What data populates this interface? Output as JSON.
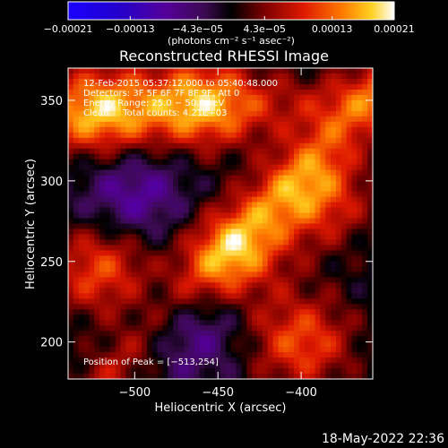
{
  "chart_data": {
    "type": "heatmap",
    "title": "Reconstructed RHESSI Image",
    "xlabel": "Heliocentric X (arcsec)",
    "ylabel": "Heliocentric Y (arcsec)",
    "xlim": [
      -540,
      -357
    ],
    "ylim": [
      177,
      370
    ],
    "x_ticks": [
      -500,
      -450,
      -400
    ],
    "x_tick_labels": [
      "−500",
      "−450",
      "−400"
    ],
    "y_ticks": [
      200,
      250,
      300,
      350
    ],
    "y_tick_labels": [
      "200",
      "250",
      "300",
      "350"
    ],
    "colorbar": {
      "min": -0.00021,
      "max": 0.00021,
      "ticks": [
        -0.00021,
        -0.00013,
        -4.3e-05,
        4.3e-05,
        0.00013,
        0.00021
      ],
      "tick_labels": [
        "−0.00021",
        "−0.00013",
        "−4.3e−05",
        "4.3e−05",
        "0.00013",
        "0.00021"
      ],
      "units_label": "(photons cm⁻² s⁻¹ asec⁻²)",
      "colormap": "rainbow-to-hot"
    },
    "annotations": {
      "time": "12-Feb-2015 05:37:12.000 to 05:40:48.000",
      "detectors": "Detectors: 3F 5F 6F 7F 8F 9F, Att 0",
      "energy": "Energy Range: 25.0 − 50.0 keV",
      "method": "Clean     Total counts: 4.21E+03",
      "peak": "Position of Peak = [−513,254]"
    },
    "peak_position": [
      -513,
      254
    ],
    "features": [
      {
        "region": "upper-left",
        "x": -520,
        "y": 345,
        "level": "high"
      },
      {
        "region": "upper-center",
        "x": -460,
        "y": 350,
        "level": "high"
      },
      {
        "region": "right ridge",
        "x": -390,
        "y": 290,
        "level": "high"
      },
      {
        "region": "center band",
        "x": -440,
        "y": 255,
        "level": "high"
      },
      {
        "region": "lower-left",
        "x": -520,
        "y": 245,
        "level": "high"
      },
      {
        "region": "lower-right",
        "x": -400,
        "y": 200,
        "level": "high"
      },
      {
        "region": "mid-left",
        "x": -500,
        "y": 290,
        "level": "low"
      },
      {
        "region": "center-lower",
        "x": -470,
        "y": 210,
        "level": "low"
      }
    ]
  },
  "footer": {
    "timestamp": "18-May-2022 22:36"
  },
  "colors": {
    "background": "#000000",
    "text": "#ffffff",
    "frame": "#ffffff"
  }
}
